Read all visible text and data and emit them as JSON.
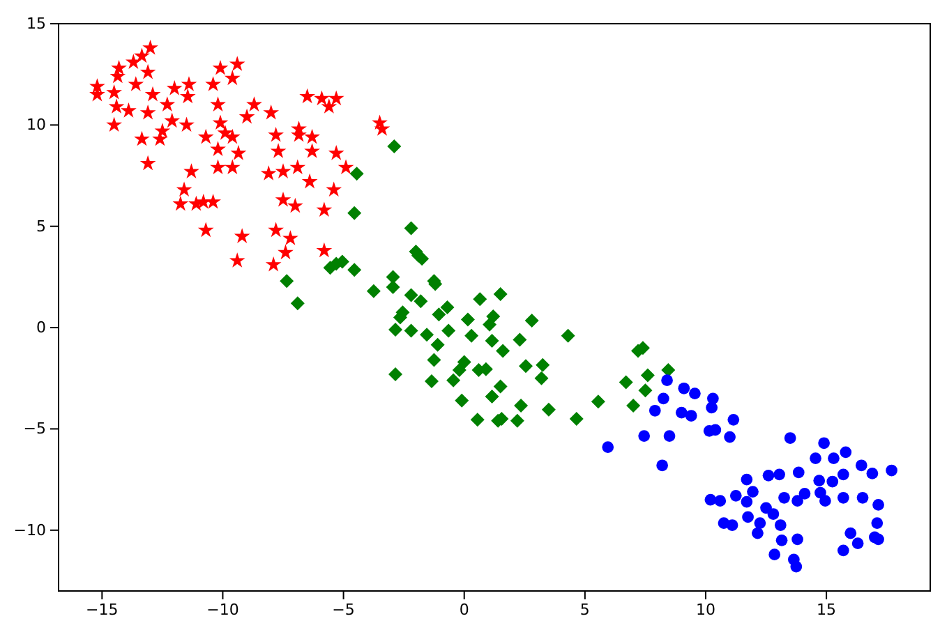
{
  "chart_data": {
    "type": "scatter",
    "xlim": [
      -16.8,
      19.3
    ],
    "ylim": [
      -13,
      15
    ],
    "xticks": [
      -15,
      -10,
      -5,
      0,
      5,
      10,
      15
    ],
    "yticks": [
      -10,
      -5,
      0,
      5,
      10,
      15
    ],
    "series": [
      {
        "color": "#ff0000",
        "marker": "star",
        "x": [
          -13.0,
          -13.35,
          -13.7,
          -14.3,
          -14.35,
          -13.1,
          -15.2,
          -15.2,
          -13.6,
          -14.5,
          -12.9,
          -14.4,
          -13.9,
          -13.1,
          -14.5,
          -12.0,
          -11.4,
          -11.45,
          -12.3,
          -12.1,
          -11.5,
          -12.5,
          -12.6,
          -13.35,
          -13.1,
          -10.1,
          -9.4,
          -9.6,
          -10.4,
          -10.2,
          -10.1,
          -9.9,
          -9.6,
          -10.7,
          -10.2,
          -9.35,
          -10.2,
          -9.6,
          -11.3,
          -11.6,
          -11.75,
          -11.1,
          -10.8,
          -10.4,
          -10.7,
          -9.2,
          -9.4,
          -8.7,
          -8.0,
          -9.0,
          -7.8,
          -7.7,
          -8.1,
          -7.5,
          -6.9,
          -6.85,
          -6.85,
          -6.3,
          -6.3,
          -5.3,
          -4.9,
          -6.4,
          -5.4,
          -6.5,
          -5.9,
          -5.3,
          -5.6,
          -7.5,
          -7.0,
          -5.8,
          -7.8,
          -7.2,
          -7.4,
          -7.9,
          -5.8,
          -3.5,
          -3.4
        ],
        "values": [
          13.8,
          13.4,
          13.1,
          12.8,
          12.4,
          12.6,
          11.9,
          11.5,
          12.0,
          11.6,
          11.5,
          10.9,
          10.7,
          10.6,
          10.0,
          11.8,
          12.0,
          11.4,
          11.0,
          10.2,
          10.0,
          9.7,
          9.3,
          9.3,
          8.1,
          12.8,
          13.0,
          12.3,
          12.0,
          11.0,
          10.1,
          9.6,
          9.4,
          9.4,
          8.8,
          8.6,
          7.9,
          7.9,
          7.7,
          6.8,
          6.1,
          6.1,
          6.2,
          6.2,
          4.8,
          4.5,
          3.3,
          11.0,
          10.6,
          10.4,
          9.5,
          8.7,
          7.6,
          7.7,
          7.9,
          9.8,
          9.5,
          9.4,
          8.7,
          8.6,
          7.9,
          7.2,
          6.8,
          11.4,
          11.3,
          11.3,
          10.9,
          6.3,
          6.0,
          5.8,
          4.8,
          4.4,
          3.7,
          3.1,
          3.8,
          10.1,
          9.8
        ]
      },
      {
        "color": "#008000",
        "marker": "diamond",
        "x": [
          -2.9,
          -4.45,
          -4.55,
          -2.2,
          -2.0,
          -1.75,
          -1.9,
          -7.35,
          -6.9,
          -5.55,
          -5.3,
          -5.05,
          -4.55,
          -3.75,
          -2.95,
          -2.95,
          -2.2,
          -1.25,
          -1.2,
          -1.8,
          -2.55,
          -2.65,
          -0.7,
          -1.05,
          0.65,
          1.5,
          0.15,
          1.2,
          1.05,
          2.8,
          -2.85,
          -2.2,
          -1.55,
          -0.65,
          -1.1,
          0.3,
          1.15,
          1.6,
          2.3,
          4.3,
          -1.25,
          0.0,
          -0.2,
          -0.45,
          0.6,
          0.9,
          2.55,
          3.25,
          3.2,
          -2.85,
          -1.35,
          1.5,
          -0.1,
          1.15,
          2.35,
          3.5,
          4.65,
          0.55,
          1.55,
          1.4,
          2.2,
          5.55,
          6.7,
          7.0,
          7.2,
          7.4,
          7.6,
          7.5,
          8.45
        ],
        "values": [
          8.95,
          7.6,
          5.65,
          4.9,
          3.75,
          3.4,
          3.55,
          2.3,
          1.2,
          2.95,
          3.15,
          3.25,
          2.85,
          1.8,
          2.5,
          2.0,
          1.6,
          2.3,
          2.15,
          1.3,
          0.75,
          0.5,
          1.0,
          0.65,
          1.4,
          1.65,
          0.4,
          0.55,
          0.15,
          0.35,
          -0.1,
          -0.15,
          -0.35,
          -0.15,
          -0.85,
          -0.4,
          -0.65,
          -1.15,
          -0.6,
          -0.4,
          -1.6,
          -1.7,
          -2.1,
          -2.6,
          -2.1,
          -2.05,
          -1.9,
          -1.85,
          -2.5,
          -2.3,
          -2.65,
          -2.9,
          -3.6,
          -3.4,
          -3.85,
          -4.05,
          -4.5,
          -4.55,
          -4.5,
          -4.6,
          -4.6,
          -3.65,
          -2.7,
          -3.85,
          -1.15,
          -1.0,
          -2.35,
          -3.1,
          -2.1
        ]
      },
      {
        "color": "#0000ff",
        "marker": "circle",
        "x": [
          8.4,
          9.1,
          9.55,
          10.3,
          10.25,
          11.15,
          8.25,
          7.9,
          9.0,
          9.4,
          10.15,
          10.4,
          11.0,
          7.45,
          8.5,
          5.95,
          8.2,
          13.5,
          14.9,
          14.55,
          15.3,
          15.8,
          16.45,
          16.9,
          17.7,
          13.85,
          13.05,
          12.6,
          11.7,
          14.7,
          15.25,
          15.7,
          11.95,
          11.25,
          11.7,
          10.2,
          10.6,
          13.25,
          13.8,
          14.1,
          14.75,
          14.95,
          15.7,
          16.5,
          17.15,
          12.5,
          12.8,
          11.75,
          12.25,
          13.1,
          10.75,
          11.1,
          12.15,
          13.15,
          13.8,
          17.1,
          16.0,
          16.3,
          17.0,
          17.15,
          15.7,
          12.85,
          13.65,
          13.75
        ],
        "values": [
          -2.6,
          -3.0,
          -3.25,
          -3.5,
          -3.95,
          -4.55,
          -3.5,
          -4.1,
          -4.2,
          -4.35,
          -5.1,
          -5.05,
          -5.4,
          -5.35,
          -5.35,
          -5.9,
          -6.8,
          -5.45,
          -5.7,
          -6.45,
          -6.45,
          -6.15,
          -6.8,
          -7.2,
          -7.05,
          -7.15,
          -7.25,
          -7.3,
          -7.5,
          -7.55,
          -7.6,
          -7.25,
          -8.1,
          -8.3,
          -8.6,
          -8.5,
          -8.55,
          -8.4,
          -8.55,
          -8.2,
          -8.15,
          -8.55,
          -8.4,
          -8.4,
          -8.75,
          -8.9,
          -9.2,
          -9.35,
          -9.65,
          -9.75,
          -9.65,
          -9.75,
          -10.15,
          -10.5,
          -10.45,
          -9.65,
          -10.15,
          -10.65,
          -10.35,
          -10.45,
          -11.0,
          -11.2,
          -11.45,
          -11.8
        ]
      }
    ]
  }
}
